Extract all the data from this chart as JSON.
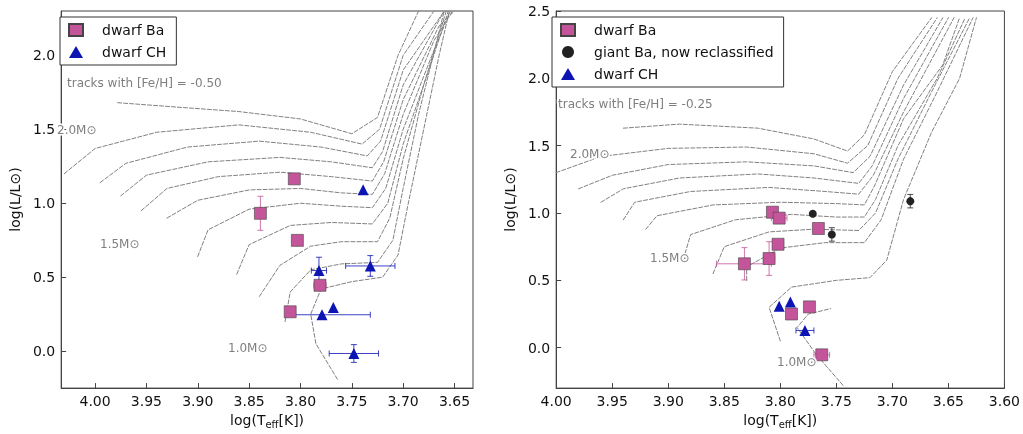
{
  "chart_data": [
    {
      "type": "scatter",
      "xlabel": "log(T$_{eff}$[K])",
      "ylabel": "log(L/L⊙)",
      "xlim": [
        4.033,
        3.632
      ],
      "ylim": [
        -0.25,
        2.3
      ],
      "xticks": [
        {
          "value": 4.0,
          "label": "4.00"
        },
        {
          "value": 3.95,
          "label": "3.95"
        },
        {
          "value": 3.9,
          "label": "3.90"
        },
        {
          "value": 3.85,
          "label": "3.85"
        },
        {
          "value": 3.8,
          "label": "3.80"
        },
        {
          "value": 3.75,
          "label": "3.75"
        },
        {
          "value": 3.7,
          "label": "3.70"
        },
        {
          "value": 3.65,
          "label": "3.65"
        }
      ],
      "yticks": [
        {
          "value": 0,
          "label": "0.0"
        },
        {
          "value": 0.5,
          "label": "0.5"
        },
        {
          "value": 1,
          "label": "1.0"
        },
        {
          "value": 1.5,
          "label": "1.5"
        },
        {
          "value": 2,
          "label": "2.0"
        }
      ],
      "legend": "top left",
      "annotations": [
        "tracks with [Fe/H] = -0.50",
        "2.0M⊙",
        "1.5M⊙",
        "1.0M⊙"
      ],
      "series": [
        {
          "type": "line",
          "color": "#808080",
          "line_style": "dashed",
          "marker": "none",
          "x": [
            3.764,
            3.785,
            3.79,
            3.78,
            3.75,
            3.72,
            3.705,
            3.695,
            3.68,
            3.665,
            3.655
          ],
          "values": [
            -0.19,
            0.05,
            0.25,
            0.42,
            0.47,
            0.5,
            0.65,
            1.0,
            1.5,
            2.0,
            2.3
          ]
        },
        {
          "type": "line",
          "color": "#808080",
          "line_style": "dashed",
          "marker": "none",
          "x": [
            3.815,
            3.81,
            3.79,
            3.76,
            3.725,
            3.71,
            3.7,
            3.685,
            3.66
          ],
          "values": [
            0.2,
            0.4,
            0.55,
            0.59,
            0.6,
            0.75,
            1.1,
            1.6,
            2.3
          ]
        },
        {
          "type": "line",
          "color": "#808080",
          "line_style": "dashed",
          "marker": "none",
          "x": [
            3.84,
            3.82,
            3.79,
            3.76,
            3.725,
            3.713,
            3.7,
            3.68,
            3.658
          ],
          "values": [
            0.37,
            0.58,
            0.71,
            0.74,
            0.74,
            0.9,
            1.3,
            1.8,
            2.3
          ]
        },
        {
          "type": "line",
          "color": "#808080",
          "line_style": "dashed",
          "marker": "none",
          "x": [
            3.862,
            3.85,
            3.81,
            3.77,
            3.73,
            3.715,
            3.7,
            3.675,
            3.656
          ],
          "values": [
            0.52,
            0.72,
            0.85,
            0.87,
            0.86,
            1.0,
            1.4,
            1.9,
            2.3
          ]
        },
        {
          "type": "line",
          "color": "#808080",
          "line_style": "dashed",
          "marker": "none",
          "x": [
            3.9,
            3.89,
            3.85,
            3.8,
            3.76,
            3.73,
            3.717,
            3.7,
            3.672,
            3.654
          ],
          "values": [
            0.64,
            0.82,
            0.96,
            1.0,
            0.98,
            0.97,
            1.1,
            1.5,
            2.0,
            2.3
          ]
        },
        {
          "type": "line",
          "color": "#808080",
          "line_style": "dashed",
          "marker": "none",
          "x": [
            3.93,
            3.9,
            3.85,
            3.8,
            3.76,
            3.73,
            3.718,
            3.7,
            3.67,
            3.652
          ],
          "values": [
            0.9,
            1.02,
            1.09,
            1.1,
            1.07,
            1.06,
            1.2,
            1.6,
            2.1,
            2.3
          ]
        },
        {
          "type": "line",
          "color": "#808080",
          "line_style": "dashed",
          "marker": "none",
          "x": [
            3.955,
            3.93,
            3.88,
            3.82,
            3.77,
            3.73,
            3.719,
            3.7,
            3.665,
            3.65
          ],
          "values": [
            0.95,
            1.1,
            1.18,
            1.21,
            1.18,
            1.15,
            1.28,
            1.7,
            2.2,
            2.3
          ]
        },
        {
          "type": "line",
          "color": "#808080",
          "line_style": "dashed",
          "marker": "none",
          "x": [
            3.975,
            3.95,
            3.89,
            3.82,
            3.77,
            3.73,
            3.72,
            3.7,
            3.66
          ],
          "values": [
            1.05,
            1.19,
            1.28,
            1.31,
            1.28,
            1.24,
            1.35,
            1.8,
            2.3
          ]
        },
        {
          "type": "line",
          "color": "#808080",
          "line_style": "dashed",
          "marker": "none",
          "x": [
            3.995,
            3.97,
            3.91,
            3.84,
            3.78,
            3.735,
            3.722,
            3.7,
            3.66
          ],
          "values": [
            1.14,
            1.27,
            1.38,
            1.42,
            1.38,
            1.32,
            1.42,
            1.9,
            2.3
          ]
        },
        {
          "type": "line",
          "color": "#808080",
          "line_style": "dashed",
          "marker": "none",
          "x": [
            4.03,
            4.0,
            3.94,
            3.86,
            3.79,
            3.74,
            3.723,
            3.7,
            3.67
          ],
          "values": [
            1.2,
            1.37,
            1.48,
            1.53,
            1.48,
            1.4,
            1.5,
            2.0,
            2.3
          ]
        },
        {
          "type": "line",
          "color": "#808080",
          "line_style": "dashed",
          "marker": "none",
          "x": [
            3.978,
            3.92,
            3.86,
            3.8,
            3.75,
            3.725,
            3.705,
            3.685
          ],
          "values": [
            1.68,
            1.65,
            1.62,
            1.57,
            1.47,
            1.58,
            2.0,
            2.3
          ]
        },
        {
          "name": "dwarf Ba",
          "color": "#c4559a",
          "marker": "square",
          "x": [
            3.806,
            3.839,
            3.803,
            3.781,
            3.81
          ],
          "values": [
            1.165,
            0.932,
            0.749,
            0.445,
            0.266
          ],
          "errors": [
            null,
            0.115,
            null,
            null,
            null
          ],
          "xerrors": [
            null,
            null,
            0.005,
            0.006,
            null
          ]
        },
        {
          "name": "dwarf CH",
          "color": "#0c14b4",
          "marker": "triangle",
          "x": [
            3.739,
            3.782,
            3.732,
            3.768,
            3.779,
            3.748
          ],
          "values": [
            1.092,
            0.545,
            0.576,
            0.295,
            0.246,
            -0.016
          ],
          "errors": [
            null,
            0.09,
            0.07,
            null,
            null,
            0.06
          ],
          "xerrors": [
            null,
            0.0074,
            0.024,
            null,
            [
              3.732,
              3.808
            ],
            0.024
          ]
        }
      ]
    },
    {
      "type": "scatter",
      "xlabel": "log(T$_{eff}$[K])",
      "ylabel": "log(L/L⊙)",
      "xlim": [
        4.0,
        3.6
      ],
      "ylim": [
        -0.3,
        2.5
      ],
      "xticks": [
        {
          "value": 4.0,
          "label": "4.00"
        },
        {
          "value": 3.95,
          "label": "3.95"
        },
        {
          "value": 3.9,
          "label": "3.90"
        },
        {
          "value": 3.85,
          "label": "3.85"
        },
        {
          "value": 3.8,
          "label": "3.80"
        },
        {
          "value": 3.75,
          "label": "3.75"
        },
        {
          "value": 3.7,
          "label": "3.70"
        },
        {
          "value": 3.65,
          "label": "3.65"
        },
        {
          "value": 3.6,
          "label": "3.60"
        }
      ],
      "yticks": [
        {
          "value": 0,
          "label": "0.0"
        },
        {
          "value": 0.5,
          "label": "0.5"
        },
        {
          "value": 1,
          "label": "1.0"
        },
        {
          "value": 1.5,
          "label": "1.5"
        },
        {
          "value": 2,
          "label": "2.0"
        },
        {
          "value": 2.5,
          "label": "2.5"
        }
      ],
      "legend": "top left",
      "annotations": [
        "tracks with [Fe/H] = -0.25",
        "2.0M⊙",
        "1.5M⊙",
        "1.0M⊙"
      ],
      "series": [
        {
          "type": "line",
          "color": "#808080",
          "line_style": "dashed",
          "marker": "none",
          "x": [
            3.744,
            3.768,
            3.785,
            3.775,
            3.755
          ],
          "values": [
            -0.28,
            -0.05,
            0.15,
            0.25,
            0.29
          ]
        },
        {
          "type": "line",
          "color": "#808080",
          "line_style": "dashed",
          "marker": "none",
          "x": [
            3.8,
            3.81,
            3.79,
            3.75,
            3.72,
            3.705,
            3.69,
            3.665,
            3.64,
            3.625
          ],
          "values": [
            0.05,
            0.3,
            0.45,
            0.5,
            0.52,
            0.65,
            1.1,
            1.6,
            2.0,
            2.45
          ]
        },
        {
          "type": "line",
          "color": "#808080",
          "line_style": "dashed",
          "marker": "none",
          "x": [
            3.83,
            3.83,
            3.8,
            3.76,
            3.725,
            3.71,
            3.69,
            3.66,
            3.628
          ],
          "values": [
            0.5,
            0.6,
            0.74,
            0.78,
            0.78,
            0.95,
            1.4,
            1.9,
            2.45
          ]
        },
        {
          "type": "line",
          "color": "#808080",
          "line_style": "dashed",
          "marker": "none",
          "x": [
            3.86,
            3.85,
            3.81,
            3.77,
            3.73,
            3.715,
            3.695,
            3.665,
            3.631
          ],
          "values": [
            0.55,
            0.75,
            0.86,
            0.88,
            0.87,
            1.0,
            1.4,
            1.9,
            2.45
          ]
        },
        {
          "type": "line",
          "color": "#808080",
          "line_style": "dashed",
          "marker": "none",
          "x": [
            3.885,
            3.88,
            3.84,
            3.79,
            3.75,
            3.725,
            3.715,
            3.695,
            3.66,
            3.635
          ],
          "values": [
            0.7,
            0.84,
            0.95,
            0.99,
            0.97,
            0.97,
            1.1,
            1.5,
            2.0,
            2.45
          ]
        },
        {
          "type": "line",
          "color": "#808080",
          "line_style": "dashed",
          "marker": "none",
          "x": [
            3.92,
            3.91,
            3.86,
            3.8,
            3.75,
            3.725,
            3.716,
            3.69,
            3.655,
            3.64
          ],
          "values": [
            0.88,
            0.98,
            1.06,
            1.08,
            1.07,
            1.06,
            1.2,
            1.7,
            2.1,
            2.45
          ]
        },
        {
          "type": "line",
          "color": "#808080",
          "line_style": "dashed",
          "marker": "none",
          "x": [
            3.94,
            3.93,
            3.88,
            3.81,
            3.76,
            3.73,
            3.717,
            3.69,
            3.645
          ],
          "values": [
            0.95,
            1.08,
            1.16,
            1.19,
            1.16,
            1.14,
            1.28,
            1.75,
            2.45
          ]
        },
        {
          "type": "line",
          "color": "#808080",
          "line_style": "dashed",
          "marker": "none",
          "x": [
            3.96,
            3.94,
            3.89,
            3.82,
            3.77,
            3.73,
            3.718,
            3.69,
            3.65
          ],
          "values": [
            1.08,
            1.18,
            1.26,
            1.29,
            1.26,
            1.22,
            1.35,
            1.85,
            2.45
          ]
        },
        {
          "type": "line",
          "color": "#808080",
          "line_style": "dashed",
          "marker": "none",
          "x": [
            3.98,
            3.95,
            3.9,
            3.83,
            3.77,
            3.735,
            3.72,
            3.69,
            3.655
          ],
          "values": [
            1.18,
            1.28,
            1.36,
            1.38,
            1.35,
            1.3,
            1.42,
            1.95,
            2.45
          ]
        },
        {
          "type": "line",
          "color": "#808080",
          "line_style": "dashed",
          "marker": "none",
          "x": [
            4.0,
            3.96,
            3.9,
            3.83,
            3.77,
            3.74,
            3.722,
            3.695,
            3.66
          ],
          "values": [
            1.3,
            1.42,
            1.48,
            1.49,
            1.44,
            1.37,
            1.5,
            2.0,
            2.45
          ]
        },
        {
          "type": "line",
          "color": "#808080",
          "line_style": "dashed",
          "marker": "none",
          "x": [
            3.94,
            3.89,
            3.82,
            3.77,
            3.74,
            3.725,
            3.7,
            3.665
          ],
          "values": [
            1.63,
            1.66,
            1.63,
            1.55,
            1.46,
            1.58,
            2.05,
            2.45
          ]
        },
        {
          "name": "dwarf Ba",
          "color": "#c4559a",
          "marker": "square",
          "x": [
            3.807,
            3.801,
            3.766,
            3.802,
            3.81,
            3.832,
            3.774,
            3.79,
            3.763
          ],
          "values": [
            1.006,
            0.962,
            0.885,
            0.768,
            0.662,
            0.623,
            0.303,
            0.25,
            -0.053
          ],
          "errors": [
            0.03,
            null,
            0.03,
            0.03,
            0.125,
            0.12,
            0.03,
            0.03,
            null
          ],
          "xerrors": [
            null,
            0.007,
            null,
            null,
            0.005,
            [
              3.808,
              3.857
            ],
            null,
            null,
            0.007
          ]
        },
        {
          "name": "giant Ba, now reclassified",
          "color": "#222222",
          "marker": "circle",
          "x": [
            3.771,
            3.754,
            3.684
          ],
          "values": [
            0.994,
            0.841,
            1.088
          ],
          "errors": [
            null,
            0.05,
            0.05
          ]
        },
        {
          "name": "dwarf CH",
          "color": "#0c14b4",
          "marker": "triangle",
          "x": [
            3.801,
            3.791,
            3.778
          ],
          "values": [
            0.308,
            0.339,
            0.128
          ],
          "xerrors": [
            null,
            null,
            0.008
          ]
        }
      ]
    }
  ]
}
